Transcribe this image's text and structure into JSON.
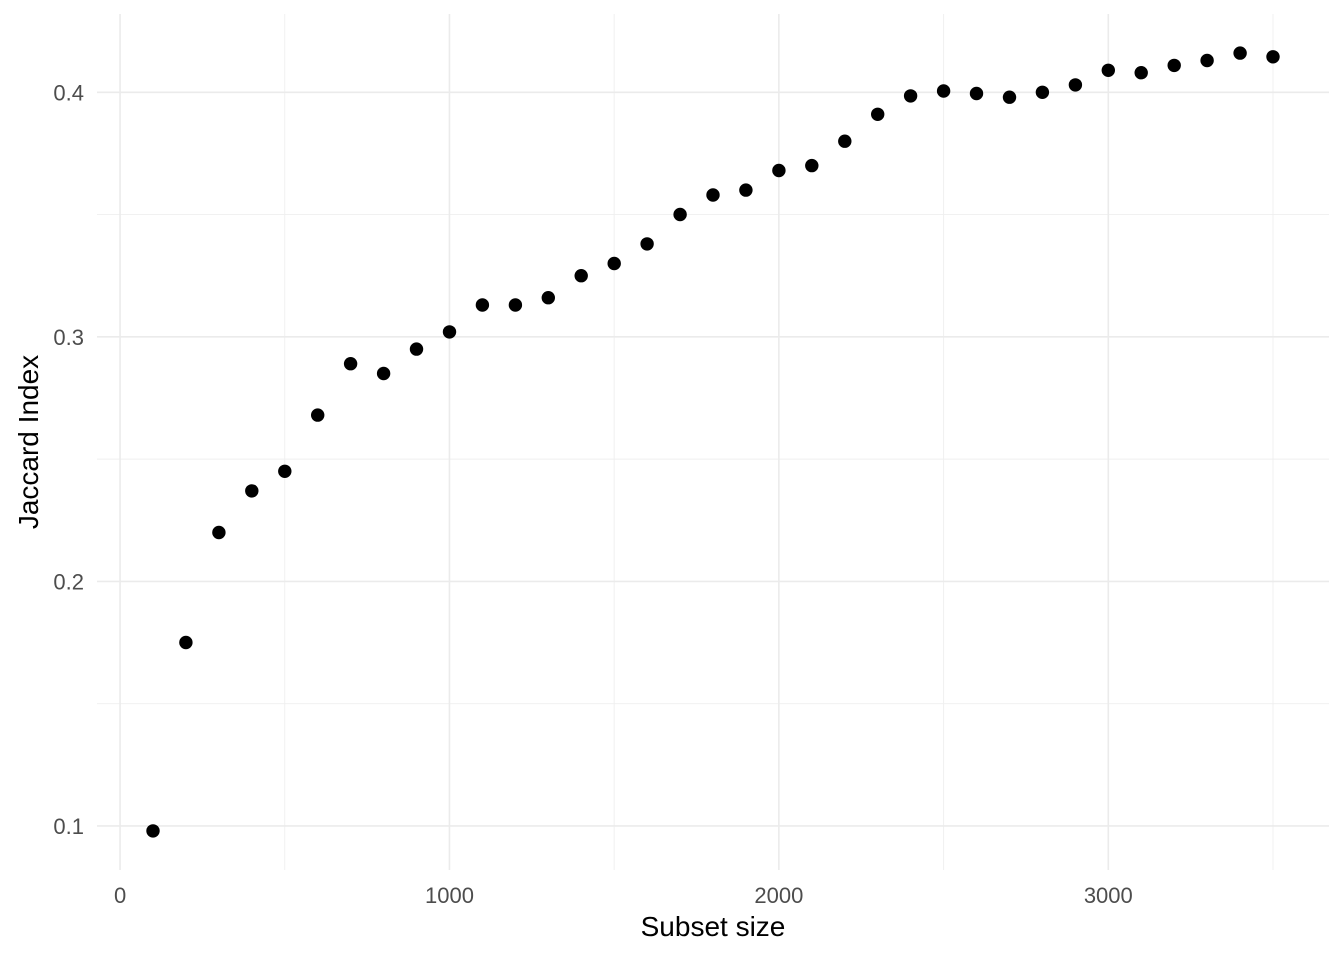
{
  "chart_data": {
    "type": "scatter",
    "title": "",
    "xlabel": "Subset size",
    "ylabel": "Jaccard Index",
    "x": [
      100,
      200,
      300,
      400,
      500,
      600,
      700,
      800,
      900,
      1000,
      1100,
      1200,
      1300,
      1400,
      1500,
      1600,
      1700,
      1800,
      1900,
      2000,
      2100,
      2200,
      2300,
      2400,
      2500,
      2600,
      2700,
      2800,
      2900,
      3000,
      3100,
      3200,
      3300,
      3400,
      3500
    ],
    "y": [
      0.098,
      0.175,
      0.22,
      0.237,
      0.245,
      0.268,
      0.289,
      0.285,
      0.295,
      0.302,
      0.313,
      0.313,
      0.316,
      0.325,
      0.33,
      0.338,
      0.35,
      0.358,
      0.36,
      0.368,
      0.37,
      0.38,
      0.391,
      0.3985,
      0.4005,
      0.3995,
      0.398,
      0.4,
      0.403,
      0.409,
      0.408,
      0.411,
      0.413,
      0.416,
      0.4145
    ],
    "xlim": [
      -70,
      3670
    ],
    "ylim": [
      0.082,
      0.432
    ],
    "x_ticks_major": [
      0,
      1000,
      2000,
      3000
    ],
    "x_ticks_minor": [
      500,
      1500,
      2500,
      3500
    ],
    "y_ticks_major": [
      0.1,
      0.2,
      0.3,
      0.4
    ],
    "y_ticks_minor": [
      0.15,
      0.25,
      0.35
    ],
    "x_tick_labels": [
      "0",
      "1000",
      "2000",
      "3000"
    ],
    "y_tick_labels": [
      "0.1",
      "0.2",
      "0.3",
      "0.4"
    ],
    "grid": "on",
    "legend": "none",
    "colors": {
      "point": "#000000",
      "grid_major": "#ebebeb",
      "grid_minor": "#efefef",
      "tick_text": "#4d4d4d",
      "title_text": "#000000",
      "background": "#ffffff"
    }
  }
}
